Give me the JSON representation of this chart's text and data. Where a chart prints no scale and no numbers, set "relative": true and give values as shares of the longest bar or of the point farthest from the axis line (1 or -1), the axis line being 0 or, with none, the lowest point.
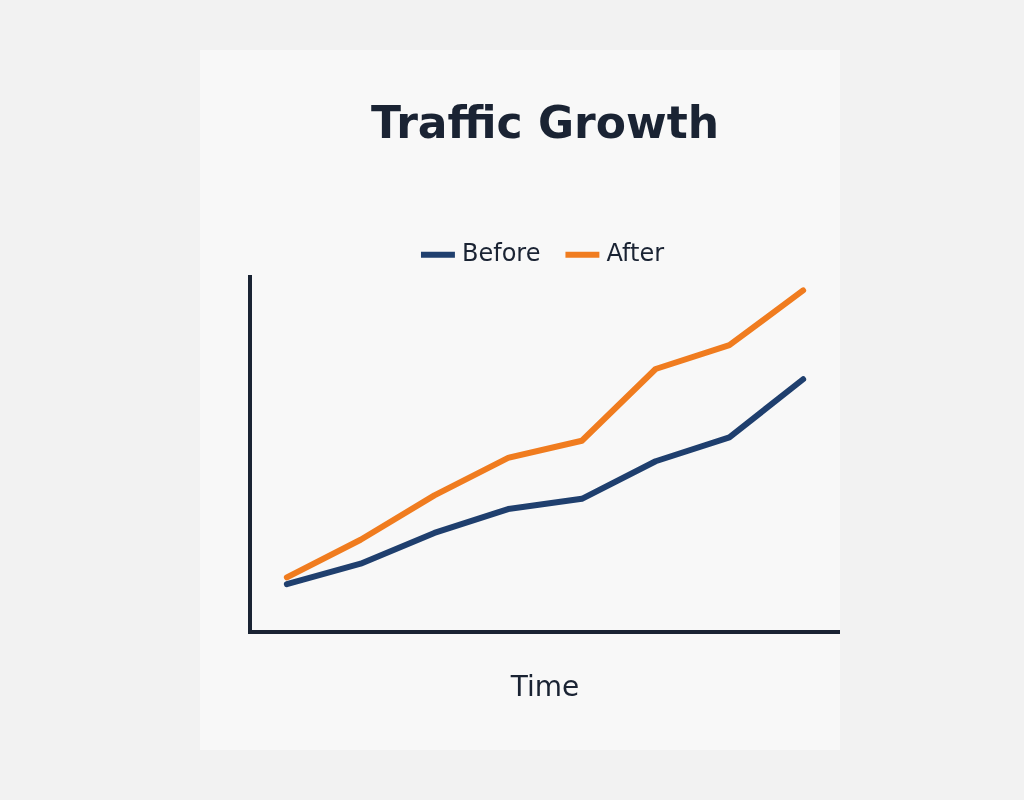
{
  "chart_data": {
    "type": "line",
    "title": "Traffic Growth",
    "xlabel": "Time",
    "relative": true,
    "categories": [
      null,
      null,
      null,
      null,
      null,
      null,
      null,
      null
    ],
    "series": [
      {
        "name": "Before",
        "color": "#1f3f6e",
        "values": [
          0.14,
          0.2,
          0.29,
          0.36,
          0.39,
          0.5,
          0.57,
          0.74
        ]
      },
      {
        "name": "After",
        "color": "#f07c1f",
        "values": [
          0.16,
          0.27,
          0.4,
          0.51,
          0.56,
          0.77,
          0.84,
          1.0
        ]
      }
    ],
    "legend": "top",
    "grid": false,
    "marker": "none",
    "line_style": "solid"
  }
}
